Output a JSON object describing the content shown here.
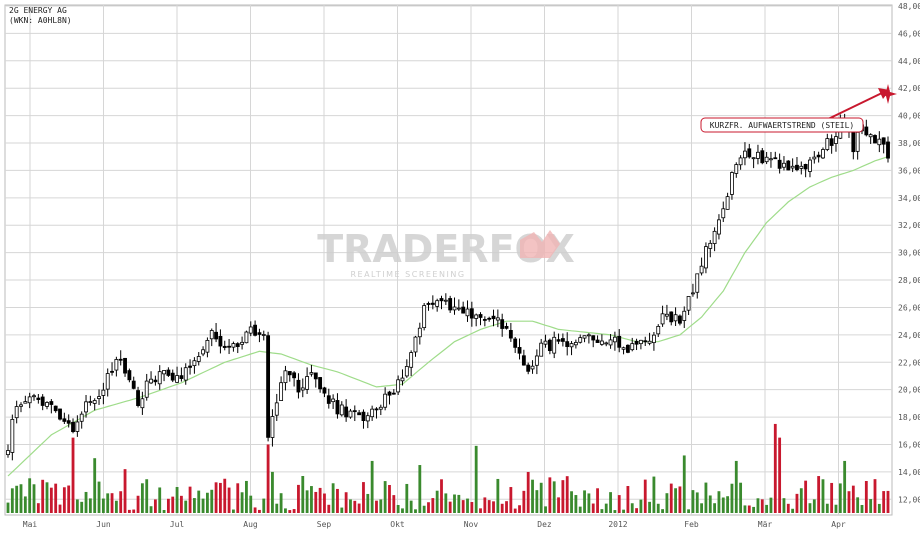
{
  "chart_data": {
    "type": "candlestick",
    "title": "2G ENERGY AG",
    "subtitle": "(WKN: A0HL8N)",
    "y_axis": {
      "range": [
        11,
        48
      ],
      "ticks": [
        "48,00",
        "46,00",
        "44,00",
        "42,00",
        "40,00",
        "38,00",
        "36,00",
        "34,00",
        "32,00",
        "30,00",
        "28,00",
        "26,00",
        "24,00",
        "22,00",
        "20,00",
        "18,00",
        "16,00",
        "14,00",
        "12,00"
      ],
      "position": "right"
    },
    "x_axis": {
      "months": [
        "Mai",
        "Jun",
        "Jul",
        "Aug",
        "Sep",
        "Okt",
        "Nov",
        "Dez",
        "2012",
        "Feb",
        "Mär",
        "Apr"
      ]
    },
    "price_anchors": [
      [
        0,
        16.0
      ],
      [
        2,
        19.0
      ],
      [
        4,
        19.3
      ],
      [
        8,
        19.1
      ],
      [
        12,
        18.3
      ],
      [
        15,
        17.2
      ],
      [
        18,
        19.0
      ],
      [
        22,
        20.0
      ],
      [
        25,
        22.2
      ],
      [
        28,
        21.0
      ],
      [
        30,
        19.2
      ],
      [
        33,
        20.8
      ],
      [
        37,
        21.2
      ],
      [
        40,
        21.0
      ],
      [
        44,
        22.8
      ],
      [
        47,
        24.0
      ],
      [
        50,
        22.8
      ],
      [
        53,
        23.1
      ],
      [
        56,
        24.6
      ],
      [
        59,
        23.6
      ],
      [
        60,
        16.5
      ],
      [
        61,
        18.0
      ],
      [
        64,
        21.7
      ],
      [
        67,
        20.0
      ],
      [
        70,
        21.3
      ],
      [
        73,
        19.5
      ],
      [
        76,
        18.6
      ],
      [
        79,
        18.2
      ],
      [
        82,
        18.0
      ],
      [
        85,
        18.4
      ],
      [
        88,
        19.8
      ],
      [
        91,
        20.8
      ],
      [
        94,
        24.0
      ],
      [
        97,
        26.6
      ],
      [
        100,
        26.6
      ],
      [
        103,
        26.1
      ],
      [
        106,
        25.6
      ],
      [
        109,
        25.3
      ],
      [
        112,
        25.2
      ],
      [
        115,
        24.2
      ],
      [
        118,
        22.6
      ],
      [
        120,
        21.2
      ],
      [
        122,
        22.9
      ],
      [
        126,
        23.4
      ],
      [
        130,
        23.0
      ],
      [
        134,
        23.7
      ],
      [
        138,
        23.8
      ],
      [
        142,
        23.0
      ],
      [
        145,
        23.3
      ],
      [
        148,
        23.9
      ],
      [
        152,
        25.5
      ],
      [
        155,
        25.0
      ],
      [
        158,
        27.4
      ],
      [
        161,
        30.0
      ],
      [
        164,
        32.0
      ],
      [
        167,
        35.5
      ],
      [
        170,
        37.5
      ],
      [
        173,
        37.0
      ],
      [
        176,
        37.0
      ],
      [
        179,
        36.3
      ],
      [
        182,
        36.0
      ],
      [
        185,
        36.5
      ],
      [
        188,
        37.6
      ],
      [
        191,
        38.5
      ],
      [
        193,
        40.2
      ],
      [
        195,
        37.8
      ],
      [
        197,
        38.9
      ],
      [
        200,
        38.3
      ],
      [
        203,
        37.3
      ]
    ],
    "moving_average_anchors": [
      [
        0,
        13.7
      ],
      [
        10,
        16.7
      ],
      [
        20,
        18.5
      ],
      [
        30,
        19.4
      ],
      [
        40,
        20.5
      ],
      [
        50,
        22.0
      ],
      [
        58,
        22.8
      ],
      [
        63,
        22.6
      ],
      [
        70,
        21.8
      ],
      [
        76,
        21.3
      ],
      [
        85,
        20.2
      ],
      [
        91,
        20.4
      ],
      [
        97,
        22.0
      ],
      [
        103,
        23.5
      ],
      [
        109,
        24.4
      ],
      [
        115,
        25.0
      ],
      [
        121,
        25.0
      ],
      [
        127,
        24.4
      ],
      [
        133,
        24.2
      ],
      [
        139,
        24.0
      ],
      [
        145,
        23.5
      ],
      [
        150,
        23.5
      ],
      [
        155,
        24.0
      ],
      [
        160,
        25.3
      ],
      [
        165,
        27.2
      ],
      [
        170,
        30.0
      ],
      [
        175,
        32.2
      ],
      [
        180,
        33.7
      ],
      [
        185,
        34.8
      ],
      [
        190,
        35.5
      ],
      [
        195,
        36.0
      ],
      [
        200,
        36.7
      ],
      [
        203,
        37.0
      ]
    ],
    "volume_peaks": [
      {
        "i": 15,
        "level": 16.5
      },
      {
        "i": 20,
        "level": 15.0
      },
      {
        "i": 27,
        "level": 14.2
      },
      {
        "i": 50,
        "level": 13.5
      },
      {
        "i": 60,
        "level": 16.0
      },
      {
        "i": 61,
        "level": 14.0
      },
      {
        "i": 68,
        "level": 13.7
      },
      {
        "i": 84,
        "level": 14.8
      },
      {
        "i": 95,
        "level": 14.5
      },
      {
        "i": 108,
        "level": 15.9
      },
      {
        "i": 125,
        "level": 13.6
      },
      {
        "i": 156,
        "level": 15.2
      },
      {
        "i": 168,
        "level": 14.8
      },
      {
        "i": 177,
        "level": 17.5
      },
      {
        "i": 178,
        "level": 16.5
      },
      {
        "i": 193,
        "level": 14.8
      },
      {
        "i": 202,
        "level": 12.6
      }
    ],
    "volume_axis_base": 11.0,
    "legend": "none",
    "grid": true,
    "annotation": {
      "text": "KURZFR. AUFWAERTSTREND (STEIL)"
    },
    "watermark": {
      "text": "TRADERFOX",
      "subtext": "REALTIME SCREENING"
    },
    "colors": {
      "up": "#3a8a2e",
      "down": "#c8182e",
      "candle": "#000000",
      "moving_average": "#9fdc8a",
      "grid": "#d6d6d6",
      "annotation": "#c8182e",
      "watermark": "#cfcfcf",
      "watermark_accent": "#f0b4b4"
    }
  }
}
